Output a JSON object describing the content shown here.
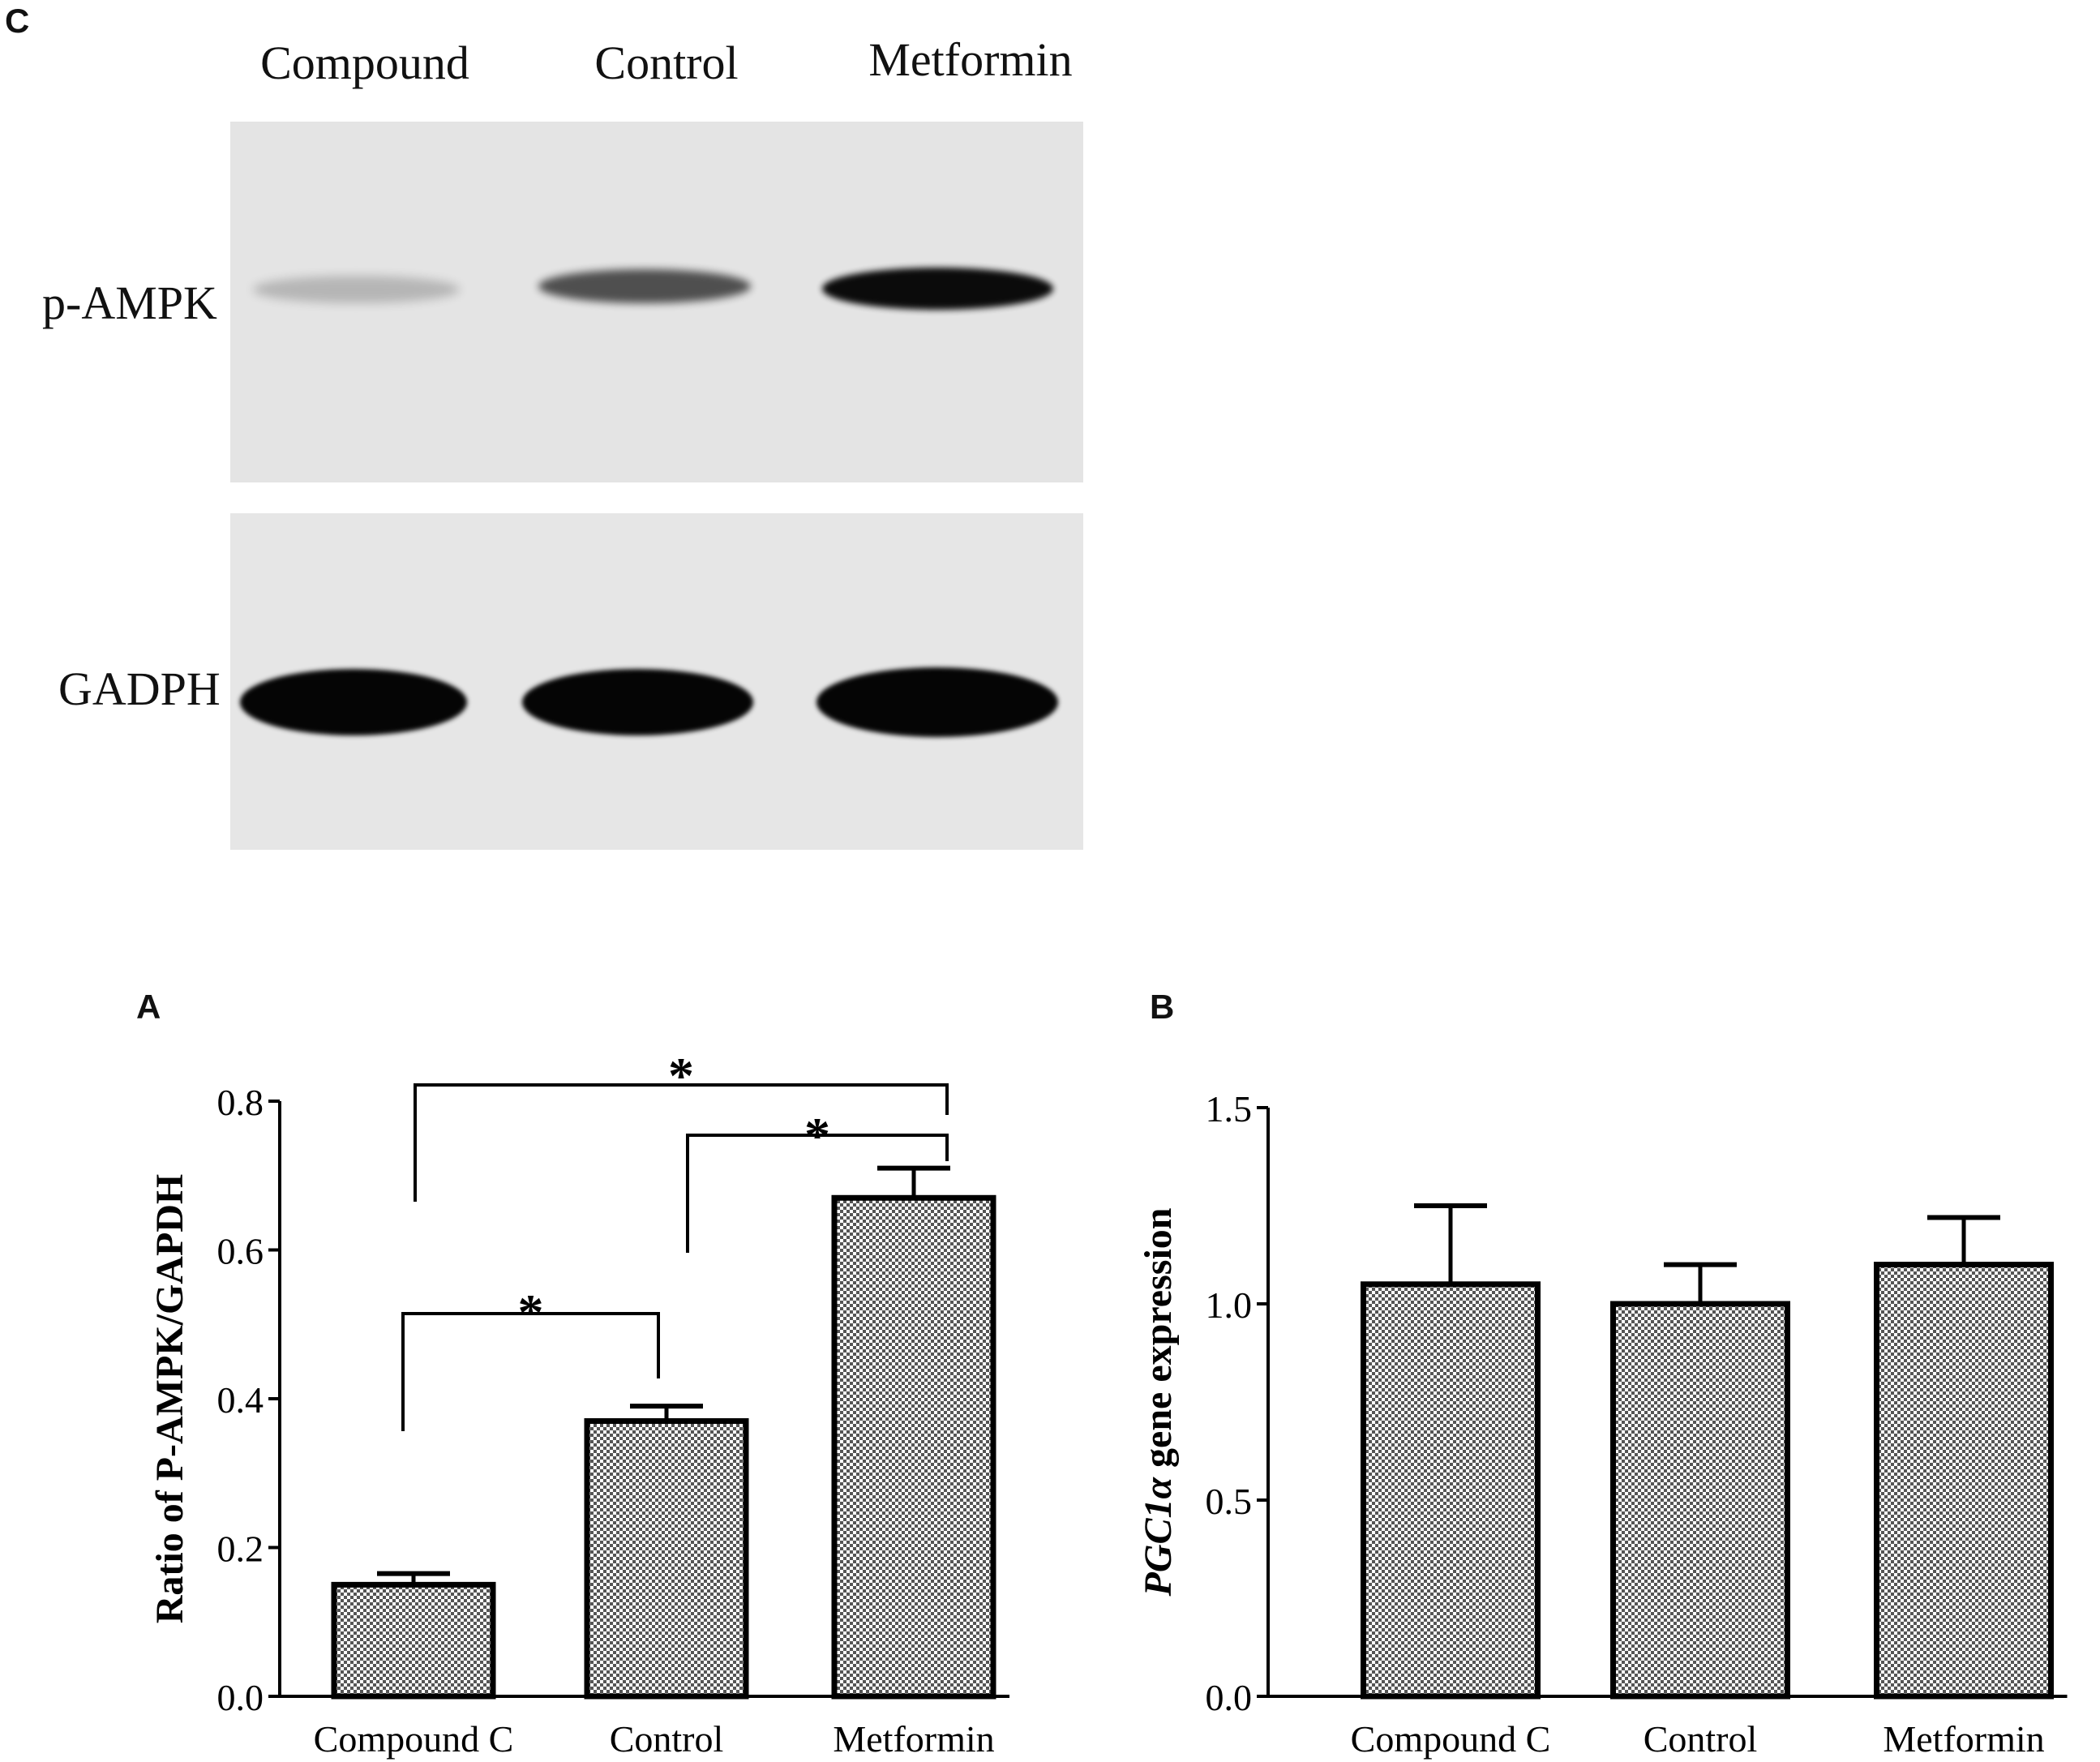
{
  "panels": {
    "c": "C",
    "a": "A",
    "b": "B"
  },
  "blot": {
    "lanes": [
      "Compound",
      "Control",
      "Metformin"
    ],
    "rows": [
      "p-AMPK",
      "GADPH"
    ],
    "intensity": {
      "p-AMPK": [
        0.2,
        0.65,
        0.95
      ],
      "GADPH": [
        1.0,
        1.0,
        1.0
      ]
    }
  },
  "colors": {
    "bar_fill": "#8a8a8a",
    "axis": "#000000",
    "blot_background": "#e3e3e3"
  },
  "chart_data": [
    {
      "panel": "A",
      "type": "bar",
      "categories": [
        "Compound C",
        "Control",
        "Metformin"
      ],
      "values": [
        0.15,
        0.37,
        0.67
      ],
      "errors": [
        0.015,
        0.02,
        0.04
      ],
      "xlabel": "",
      "ylabel": "Ratio of P-AMPK/GAPDH",
      "ylim": [
        0,
        0.8
      ],
      "yticks": [
        "0.0",
        "0.2",
        "0.4",
        "0.6",
        "0.8"
      ],
      "grid": false,
      "annotations": [
        {
          "from": "Compound C",
          "to": "Control",
          "text": "*"
        },
        {
          "from": "Control",
          "to": "Metformin",
          "text": "*"
        },
        {
          "from": "Compound C",
          "to": "Metformin",
          "text": "*"
        }
      ]
    },
    {
      "panel": "B",
      "type": "bar",
      "categories": [
        "Compound C",
        "Control",
        "Metformin"
      ],
      "values": [
        1.05,
        1.0,
        1.1
      ],
      "errors": [
        0.2,
        0.1,
        0.12
      ],
      "xlabel": "",
      "ylabel_italic": "PGC1α",
      "ylabel": "gene expression",
      "ylim": [
        0,
        1.5
      ],
      "yticks": [
        "0.0",
        "0.5",
        "1.0",
        "1.5"
      ],
      "grid": false
    }
  ]
}
